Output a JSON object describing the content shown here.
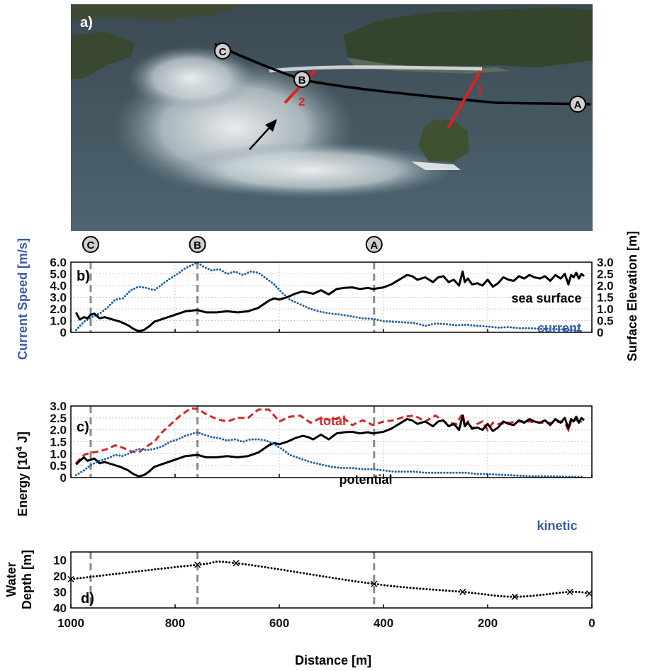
{
  "colors": {
    "current": "#1f5fa8",
    "sea_surface": "#000000",
    "total": "#d62728",
    "potential": "#000000",
    "kinetic": "#1f5fa8",
    "ylabel_left_b": "#3b5ba8",
    "transect_red": "#e02020"
  },
  "photo": {
    "label": "a)",
    "markers": [
      "C",
      "B",
      "A"
    ],
    "transects": [
      "1",
      "2"
    ],
    "description_icons": [
      "arrow-icon"
    ]
  },
  "markers": [
    {
      "label": "C",
      "distance": 962
    },
    {
      "label": "B",
      "distance": 757
    },
    {
      "label": "A",
      "distance": 418
    }
  ],
  "xaxis": {
    "label": "Distance [m]",
    "xlim": [
      1000,
      0
    ],
    "ticks": [
      1000,
      800,
      600,
      400,
      200,
      0
    ],
    "tick_labels": [
      "1000",
      "800",
      "600",
      "400",
      "200",
      "0"
    ]
  },
  "chart_data": [
    {
      "type": "line",
      "panel_label": "b)",
      "ylabel_left": "Current Speed [m/s]",
      "ylabel_right": "Surface Elevation [m]",
      "ylim_left": [
        0,
        6
      ],
      "ylim_right": [
        0,
        3
      ],
      "yticks_left": [
        "0",
        "1.0",
        "2.0",
        "3.0",
        "4.0",
        "5.0",
        "6.0"
      ],
      "yticks_right": [
        "0",
        "0.5",
        "1.0",
        "1.5",
        "2.0",
        "2.5",
        "3.0"
      ],
      "grid": true,
      "series": [
        {
          "name": "current",
          "axis": "left",
          "style": "dotted",
          "x": [
            990,
            975,
            960,
            945,
            930,
            915,
            900,
            885,
            870,
            855,
            840,
            825,
            810,
            795,
            780,
            765,
            757,
            745,
            730,
            715,
            700,
            685,
            670,
            655,
            640,
            625,
            610,
            595,
            580,
            560,
            540,
            520,
            500,
            480,
            460,
            440,
            420,
            400,
            380,
            360,
            340,
            320,
            300,
            280,
            260,
            240,
            220,
            200,
            180,
            160,
            140,
            120,
            100,
            80,
            60,
            40,
            20
          ],
          "y": [
            0.2,
            0.9,
            1.3,
            1.6,
            2.1,
            2.8,
            2.9,
            3.6,
            3.9,
            3.8,
            3.6,
            4.1,
            4.6,
            5.0,
            5.5,
            5.8,
            5.98,
            5.6,
            5.3,
            5.4,
            5.0,
            5.2,
            4.9,
            5.2,
            5.1,
            4.6,
            4.1,
            3.4,
            2.8,
            2.4,
            2.0,
            1.75,
            1.6,
            1.5,
            1.35,
            1.2,
            1.15,
            0.95,
            0.9,
            0.85,
            0.8,
            0.55,
            0.75,
            0.7,
            0.6,
            0.65,
            0.55,
            0.5,
            0.4,
            0.45,
            0.35,
            0.35,
            0.3,
            0.3,
            0.25,
            0.2,
            0.1
          ]
        },
        {
          "name": "sea surface",
          "axis": "right",
          "style": "solid",
          "x": [
            990,
            983,
            975,
            968,
            962,
            955,
            945,
            935,
            920,
            905,
            890,
            880,
            870,
            860,
            850,
            840,
            820,
            800,
            780,
            757,
            740,
            720,
            700,
            680,
            660,
            640,
            620,
            610,
            600,
            585,
            570,
            555,
            545,
            535,
            520,
            505,
            490,
            475,
            460,
            445,
            430,
            420,
            400,
            385,
            370,
            355,
            345,
            335,
            320,
            305,
            295,
            285,
            275,
            265,
            255,
            248,
            244,
            238,
            230,
            220,
            210,
            200,
            190,
            180,
            170,
            160,
            150,
            140,
            130,
            120,
            110,
            100,
            90,
            80,
            70,
            60,
            52,
            45,
            40,
            35,
            30,
            25,
            20,
            15
          ],
          "y": [
            0.85,
            0.55,
            0.65,
            0.6,
            0.75,
            0.8,
            0.6,
            0.65,
            0.55,
            0.45,
            0.3,
            0.15,
            0.05,
            0.1,
            0.25,
            0.45,
            0.6,
            0.75,
            0.9,
            0.95,
            0.85,
            0.85,
            0.9,
            0.85,
            0.9,
            1.05,
            1.35,
            1.45,
            1.4,
            1.5,
            1.65,
            1.75,
            1.7,
            1.65,
            1.8,
            1.62,
            1.85,
            1.9,
            1.92,
            1.85,
            1.9,
            1.85,
            1.92,
            2.05,
            2.25,
            2.45,
            2.4,
            2.25,
            2.35,
            2.15,
            2.35,
            2.4,
            2.15,
            2.25,
            2.0,
            2.6,
            2.15,
            2.3,
            2.05,
            2.1,
            2.0,
            2.25,
            1.95,
            2.1,
            2.35,
            2.25,
            2.2,
            2.4,
            2.3,
            2.45,
            2.35,
            2.3,
            2.4,
            2.2,
            2.45,
            2.3,
            2.5,
            2.05,
            2.45,
            2.35,
            2.55,
            2.3,
            2.5,
            2.4
          ]
        }
      ],
      "annotations": [
        "sea surface",
        "current"
      ]
    },
    {
      "type": "line",
      "panel_label": "c)",
      "ylabel": "Energy [10⁴ J]",
      "ylabel_html": [
        "Energy [10",
        "4",
        " J]"
      ],
      "ylim": [
        0,
        3
      ],
      "yticks": [
        "0",
        "0.5",
        "1.0",
        "1.5",
        "2.0",
        "2.5",
        "3.0"
      ],
      "grid": true,
      "series": [
        {
          "name": "total",
          "style": "dashed",
          "x": [
            990,
            975,
            960,
            945,
            930,
            915,
            900,
            885,
            870,
            855,
            840,
            825,
            810,
            790,
            770,
            757,
            740,
            720,
            700,
            680,
            660,
            640,
            620,
            600,
            580,
            560,
            540,
            520,
            500,
            480,
            460,
            440,
            420,
            400,
            380,
            360,
            340,
            320,
            300,
            280,
            260,
            248,
            244,
            238,
            230,
            220,
            210,
            200,
            190,
            180,
            160,
            140,
            120,
            100,
            80,
            60,
            52,
            45,
            40,
            30,
            20,
            15
          ],
          "y": [
            0.6,
            0.95,
            1.05,
            1.1,
            1.2,
            1.35,
            1.25,
            1.1,
            1.05,
            1.3,
            1.5,
            1.9,
            2.2,
            2.6,
            2.9,
            2.88,
            2.65,
            2.45,
            2.35,
            2.5,
            2.5,
            2.85,
            2.85,
            2.35,
            2.55,
            2.6,
            2.3,
            2.5,
            2.4,
            2.55,
            2.2,
            2.4,
            2.2,
            2.35,
            2.4,
            2.55,
            2.6,
            2.35,
            2.6,
            2.3,
            2.25,
            2.7,
            2.2,
            2.35,
            2.05,
            2.25,
            2.35,
            2.0,
            2.3,
            2.25,
            2.3,
            2.35,
            2.35,
            2.3,
            2.3,
            2.35,
            2.3,
            2.0,
            2.35,
            2.4,
            2.35,
            2.4
          ]
        },
        {
          "name": "potential",
          "style": "solid",
          "x": [
            990,
            983,
            975,
            968,
            962,
            955,
            945,
            935,
            920,
            905,
            890,
            880,
            870,
            860,
            850,
            840,
            820,
            800,
            780,
            757,
            740,
            720,
            700,
            680,
            660,
            640,
            620,
            610,
            600,
            585,
            570,
            555,
            545,
            535,
            520,
            505,
            490,
            475,
            460,
            445,
            430,
            420,
            400,
            385,
            370,
            355,
            345,
            335,
            320,
            305,
            295,
            285,
            275,
            265,
            255,
            248,
            244,
            238,
            230,
            220,
            210,
            200,
            190,
            180,
            170,
            160,
            150,
            140,
            130,
            120,
            110,
            100,
            90,
            80,
            70,
            60,
            52,
            45,
            40,
            35,
            30,
            25,
            20,
            15
          ],
          "y": [
            0.55,
            0.7,
            0.85,
            0.7,
            0.75,
            0.8,
            0.6,
            0.65,
            0.55,
            0.45,
            0.3,
            0.15,
            0.05,
            0.1,
            0.25,
            0.45,
            0.6,
            0.75,
            0.9,
            0.95,
            0.85,
            0.85,
            0.9,
            0.85,
            0.9,
            1.05,
            1.35,
            1.45,
            1.4,
            1.5,
            1.65,
            1.75,
            1.7,
            1.6,
            1.8,
            1.6,
            1.85,
            1.9,
            1.92,
            1.85,
            1.9,
            1.85,
            1.92,
            2.05,
            2.25,
            2.45,
            2.4,
            2.25,
            2.35,
            2.15,
            2.35,
            2.4,
            2.15,
            2.25,
            2.0,
            2.6,
            2.15,
            2.3,
            2.05,
            2.1,
            2.0,
            2.25,
            1.95,
            2.1,
            2.35,
            2.25,
            2.2,
            2.4,
            2.3,
            2.45,
            2.35,
            2.3,
            2.4,
            2.2,
            2.45,
            2.3,
            2.5,
            2.05,
            2.45,
            2.35,
            2.55,
            2.3,
            2.5,
            2.4
          ]
        },
        {
          "name": "kinetic",
          "style": "dotted",
          "x": [
            990,
            975,
            960,
            945,
            930,
            915,
            900,
            885,
            870,
            855,
            840,
            825,
            810,
            795,
            780,
            765,
            757,
            745,
            730,
            715,
            700,
            685,
            670,
            655,
            640,
            625,
            610,
            595,
            580,
            560,
            540,
            520,
            500,
            480,
            460,
            440,
            420,
            400,
            380,
            360,
            340,
            320,
            300,
            280,
            260,
            240,
            220,
            200,
            180,
            160,
            140,
            120,
            100,
            80,
            60,
            40,
            20
          ],
          "y": [
            0.1,
            0.3,
            0.55,
            0.7,
            0.8,
            0.95,
            0.9,
            1.05,
            1.2,
            1.15,
            1.2,
            1.3,
            1.5,
            1.6,
            1.75,
            1.85,
            1.9,
            1.8,
            1.7,
            1.65,
            1.55,
            1.6,
            1.5,
            1.6,
            1.6,
            1.55,
            1.4,
            1.2,
            0.95,
            0.8,
            0.65,
            0.55,
            0.45,
            0.4,
            0.4,
            0.35,
            0.35,
            0.3,
            0.25,
            0.25,
            0.25,
            0.2,
            0.2,
            0.2,
            0.2,
            0.2,
            0.15,
            0.15,
            0.12,
            0.1,
            0.08,
            0.06,
            0.05,
            0.05,
            0.04,
            0.03,
            0.02
          ]
        }
      ],
      "annotations": [
        "total",
        "potential",
        "kinetic"
      ]
    },
    {
      "type": "line",
      "panel_label": "d)",
      "ylabel_lines": [
        "Water",
        "Depth [m]"
      ],
      "ylim": [
        40,
        5
      ],
      "yticks": [
        "10",
        "20",
        "30",
        "40"
      ],
      "ytick_values": [
        10,
        20,
        30,
        40
      ],
      "grid": false,
      "series": [
        {
          "name": "water depth",
          "style": "dotted",
          "marker": "x",
          "x": [
            1000,
            757,
            683,
            418,
            248,
            148,
            42,
            5
          ],
          "y": [
            22,
            13,
            12,
            25,
            30,
            33,
            30,
            31
          ]
        }
      ]
    }
  ]
}
